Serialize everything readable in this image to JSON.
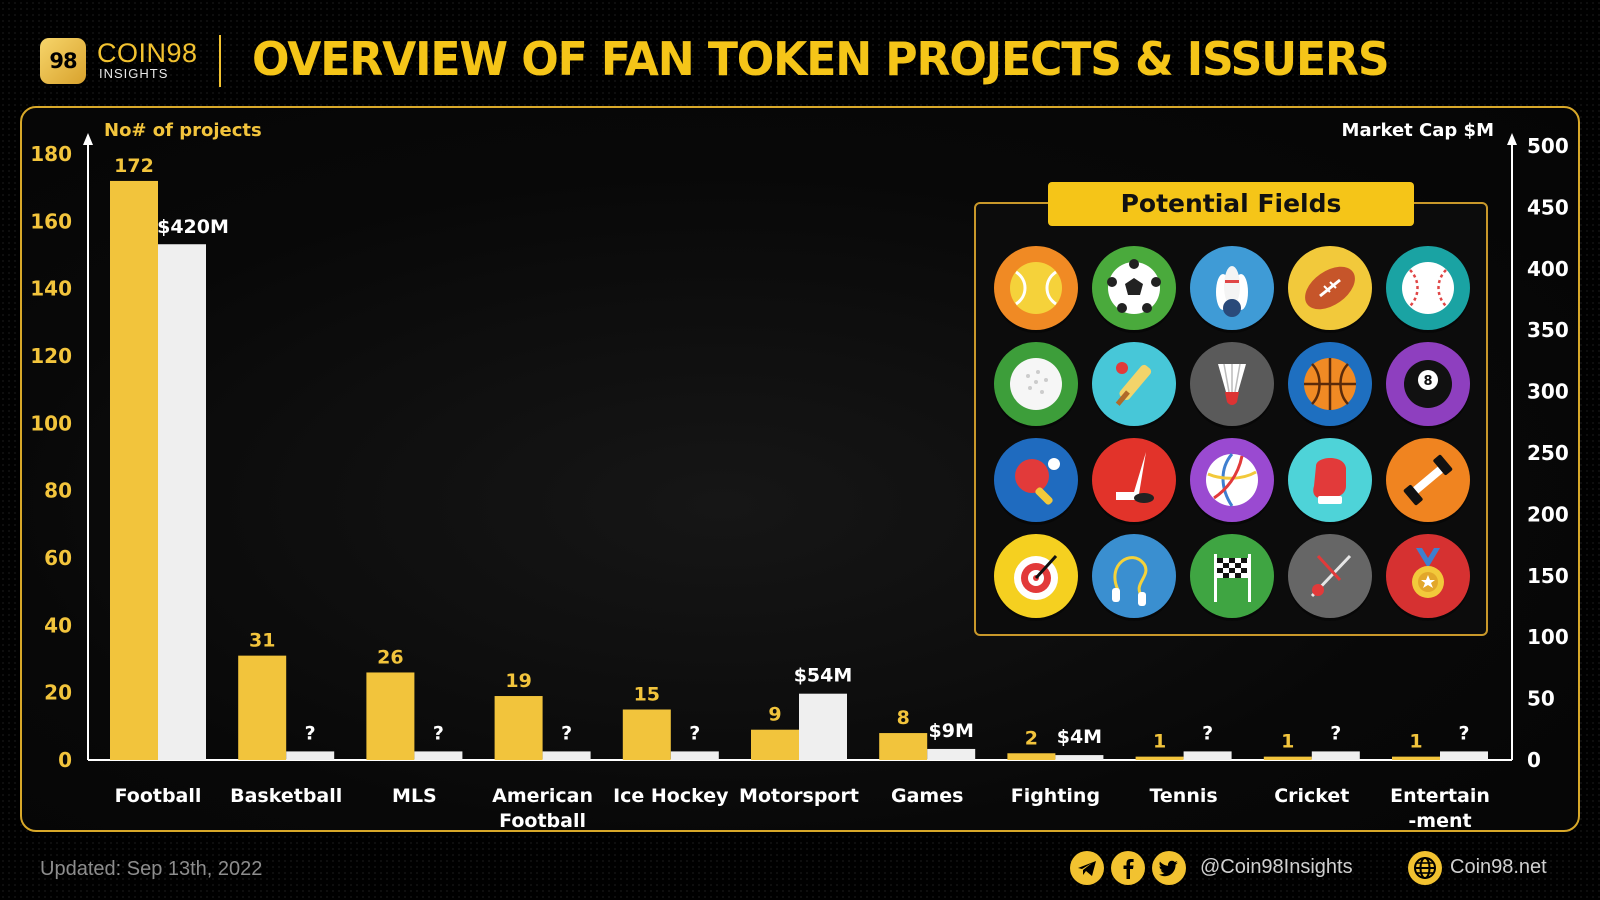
{
  "header": {
    "logo_mark": "98",
    "brand_name": "COIN98",
    "brand_sub": "INSIGHTS",
    "title": "OVERVIEW OF FAN TOKEN PROJECTS & ISSUERS"
  },
  "colors": {
    "accent": "#f5c518",
    "projects_bar": "#f2c43c",
    "marketcap_bar": "#efefef",
    "axis": "#ffffff",
    "frame": "#d8a829"
  },
  "chart_data": {
    "type": "bar",
    "ylabel": "No# of projects",
    "y2label": "Market Cap $M",
    "ylim": [
      0,
      180
    ],
    "y2lim": [
      0,
      500
    ],
    "yticks": [
      0,
      20,
      40,
      60,
      80,
      100,
      120,
      140,
      160,
      180
    ],
    "y2ticks": [
      0,
      50,
      100,
      150,
      200,
      250,
      300,
      350,
      400,
      450,
      500
    ],
    "categories": [
      "Football",
      "Basketball",
      "MLS",
      "American Football",
      "Ice Hockey",
      "Motorsport",
      "Games",
      "Fighting",
      "Tennis",
      "Cricket",
      "Entertainment"
    ],
    "category_labels": [
      [
        "Football"
      ],
      [
        "Basketball"
      ],
      [
        "MLS"
      ],
      [
        "American",
        "Football"
      ],
      [
        "Ice Hockey"
      ],
      [
        "Motorsport"
      ],
      [
        "Games"
      ],
      [
        "Fighting"
      ],
      [
        "Tennis"
      ],
      [
        "Cricket"
      ],
      [
        "Entertain",
        "-ment"
      ]
    ],
    "series": [
      {
        "axis": "left",
        "values": [
          172,
          31,
          26,
          19,
          15,
          9,
          8,
          2,
          1,
          1,
          1
        ],
        "labels": [
          "172",
          "31",
          "26",
          "19",
          "15",
          "9",
          "8",
          "2",
          "1",
          "1",
          "1"
        ]
      },
      {
        "axis": "right",
        "values": [
          420,
          7,
          7,
          7,
          7,
          54,
          9,
          4,
          7,
          7,
          7
        ],
        "labels": [
          "$420M",
          "?",
          "?",
          "?",
          "?",
          "$54M",
          "$9M",
          "$4M",
          "?",
          "?",
          "?"
        ]
      }
    ],
    "grid": false,
    "legend": "none"
  },
  "inset": {
    "title": "Potential Fields",
    "icons": [
      {
        "name": "tennis-ball-icon",
        "bg": "#f08a24"
      },
      {
        "name": "soccer-ball-icon",
        "bg": "#4aaa3c"
      },
      {
        "name": "bowling-icon",
        "bg": "#3f9bd6"
      },
      {
        "name": "american-football-icon",
        "bg": "#f2c93b"
      },
      {
        "name": "baseball-icon",
        "bg": "#1aa3a3"
      },
      {
        "name": "golf-ball-icon",
        "bg": "#3d9e3a"
      },
      {
        "name": "cricket-bat-icon",
        "bg": "#47c7d8"
      },
      {
        "name": "shuttlecock-icon",
        "bg": "#5a5a5a"
      },
      {
        "name": "basketball-icon",
        "bg": "#1e6fc0"
      },
      {
        "name": "billiard-ball-icon",
        "bg": "#8e3fbf"
      },
      {
        "name": "ping-pong-icon",
        "bg": "#1f6bbf"
      },
      {
        "name": "ice-hockey-icon",
        "bg": "#e2332a"
      },
      {
        "name": "volleyball-icon",
        "bg": "#9a4ad1"
      },
      {
        "name": "boxing-glove-icon",
        "bg": "#4ed3d8"
      },
      {
        "name": "dumbbell-icon",
        "bg": "#f08420"
      },
      {
        "name": "archery-target-icon",
        "bg": "#f5d020"
      },
      {
        "name": "jump-rope-icon",
        "bg": "#3a8fd0"
      },
      {
        "name": "racing-flag-icon",
        "bg": "#3fa542"
      },
      {
        "name": "fencing-icon",
        "bg": "#666666"
      },
      {
        "name": "medal-icon",
        "bg": "#d63131"
      }
    ]
  },
  "footer": {
    "updated": "Updated: Sep 13th, 2022",
    "social_icons": [
      "telegram-icon",
      "facebook-icon",
      "twitter-icon"
    ],
    "handle": "@Coin98Insights",
    "site": "Coin98.net"
  }
}
